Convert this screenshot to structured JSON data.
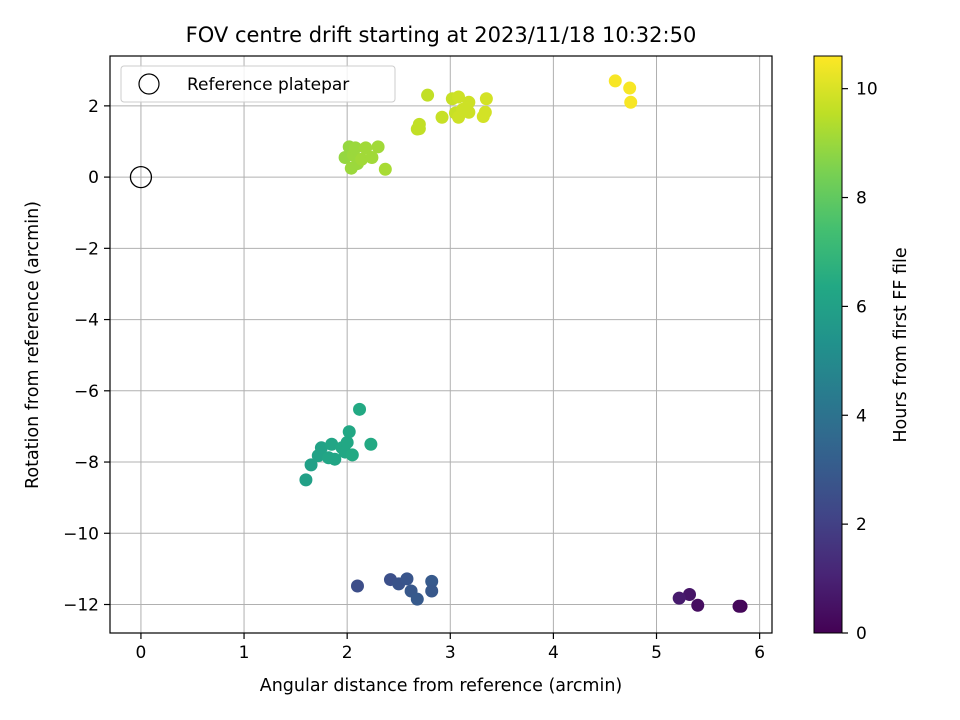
{
  "chart_data": {
    "type": "scatter",
    "title": "FOV centre drift starting at 2023/11/18 10:32:50",
    "xlabel": "Angular distance from reference (arcmin)",
    "ylabel": "Rotation from reference (arcmin)",
    "xlim": [
      -0.3,
      6.12
    ],
    "ylim": [
      -12.8,
      3.4
    ],
    "xticks": [
      0,
      1,
      2,
      3,
      4,
      5,
      6
    ],
    "yticks": [
      -12,
      -10,
      -8,
      -6,
      -4,
      -2,
      0,
      2
    ],
    "grid": true,
    "legend": {
      "placement": "upper-left",
      "entries": [
        "Reference platepar"
      ]
    },
    "reference_point": {
      "x": 0,
      "y": 0,
      "label": "Reference platepar"
    },
    "colorbar": {
      "label": "Hours from first FF file",
      "range": [
        0,
        10.6
      ],
      "ticks": [
        0,
        2,
        4,
        6,
        8,
        10
      ],
      "colormap": "viridis"
    },
    "points": [
      {
        "x": 5.82,
        "y": -12.05,
        "h": 0.1
      },
      {
        "x": 5.8,
        "y": -12.05,
        "h": 0.2
      },
      {
        "x": 5.4,
        "y": -12.02,
        "h": 0.4
      },
      {
        "x": 5.32,
        "y": -11.72,
        "h": 0.6
      },
      {
        "x": 5.22,
        "y": -11.82,
        "h": 0.8
      },
      {
        "x": 2.1,
        "y": -11.48,
        "h": 2.5
      },
      {
        "x": 2.42,
        "y": -11.3,
        "h": 2.6
      },
      {
        "x": 2.5,
        "y": -11.42,
        "h": 2.7
      },
      {
        "x": 2.58,
        "y": -11.28,
        "h": 2.8
      },
      {
        "x": 2.62,
        "y": -11.62,
        "h": 2.9
      },
      {
        "x": 2.68,
        "y": -11.85,
        "h": 3.0
      },
      {
        "x": 2.82,
        "y": -11.35,
        "h": 3.0
      },
      {
        "x": 2.82,
        "y": -11.62,
        "h": 2.9
      },
      {
        "x": 1.6,
        "y": -8.5,
        "h": 6.0
      },
      {
        "x": 1.65,
        "y": -8.08,
        "h": 6.0
      },
      {
        "x": 1.72,
        "y": -7.82,
        "h": 6.1
      },
      {
        "x": 1.75,
        "y": -7.6,
        "h": 6.1
      },
      {
        "x": 1.82,
        "y": -7.88,
        "h": 6.2
      },
      {
        "x": 1.85,
        "y": -7.5,
        "h": 6.2
      },
      {
        "x": 1.88,
        "y": -7.92,
        "h": 6.2
      },
      {
        "x": 1.95,
        "y": -7.6,
        "h": 6.3
      },
      {
        "x": 1.98,
        "y": -7.72,
        "h": 6.3
      },
      {
        "x": 2.0,
        "y": -7.45,
        "h": 6.3
      },
      {
        "x": 2.02,
        "y": -7.15,
        "h": 6.3
      },
      {
        "x": 2.05,
        "y": -7.8,
        "h": 6.4
      },
      {
        "x": 2.12,
        "y": -6.52,
        "h": 6.4
      },
      {
        "x": 2.23,
        "y": -7.5,
        "h": 6.4
      },
      {
        "x": 1.98,
        "y": 0.55,
        "h": 8.9
      },
      {
        "x": 2.02,
        "y": 0.85,
        "h": 8.9
      },
      {
        "x": 2.04,
        "y": 0.25,
        "h": 9.0
      },
      {
        "x": 2.06,
        "y": 0.62,
        "h": 9.0
      },
      {
        "x": 2.08,
        "y": 0.82,
        "h": 9.0
      },
      {
        "x": 2.1,
        "y": 0.38,
        "h": 9.0
      },
      {
        "x": 2.14,
        "y": 0.5,
        "h": 9.1
      },
      {
        "x": 2.18,
        "y": 0.82,
        "h": 9.1
      },
      {
        "x": 2.24,
        "y": 0.55,
        "h": 9.1
      },
      {
        "x": 2.3,
        "y": 0.85,
        "h": 9.1
      },
      {
        "x": 2.37,
        "y": 0.22,
        "h": 9.2
      },
      {
        "x": 2.68,
        "y": 1.35,
        "h": 9.6
      },
      {
        "x": 2.7,
        "y": 1.48,
        "h": 9.6
      },
      {
        "x": 2.7,
        "y": 1.36,
        "h": 9.6
      },
      {
        "x": 2.78,
        "y": 2.3,
        "h": 9.6
      },
      {
        "x": 2.92,
        "y": 1.68,
        "h": 9.7
      },
      {
        "x": 3.02,
        "y": 2.2,
        "h": 9.7
      },
      {
        "x": 3.05,
        "y": 1.8,
        "h": 9.7
      },
      {
        "x": 3.08,
        "y": 2.25,
        "h": 9.8
      },
      {
        "x": 3.08,
        "y": 1.68,
        "h": 9.8
      },
      {
        "x": 3.12,
        "y": 1.9,
        "h": 9.8
      },
      {
        "x": 3.18,
        "y": 2.1,
        "h": 9.8
      },
      {
        "x": 3.18,
        "y": 1.82,
        "h": 9.8
      },
      {
        "x": 3.32,
        "y": 1.7,
        "h": 9.9
      },
      {
        "x": 3.34,
        "y": 1.82,
        "h": 9.9
      },
      {
        "x": 3.35,
        "y": 2.2,
        "h": 9.9
      },
      {
        "x": 4.6,
        "y": 2.7,
        "h": 10.5
      },
      {
        "x": 4.74,
        "y": 2.5,
        "h": 10.5
      },
      {
        "x": 4.75,
        "y": 2.1,
        "h": 10.5
      }
    ]
  }
}
